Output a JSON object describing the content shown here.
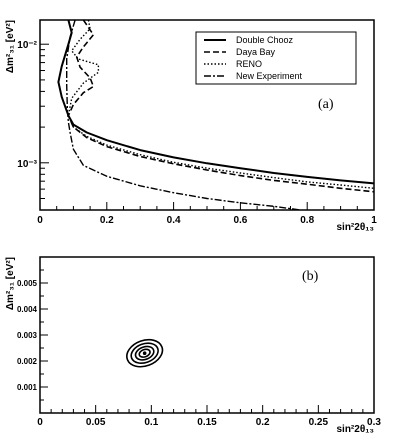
{
  "chart_data": [
    {
      "type": "line",
      "panel_label": "(a)",
      "xlabel": "sin²2θ₁₃",
      "ylabel": "Δm²₃₁ [eV²]",
      "xlim": [
        0,
        1
      ],
      "ylim": [
        0.0004,
        0.016
      ],
      "y_scale": "log",
      "x_ticks": [
        {
          "v": 0,
          "label": "0"
        },
        {
          "v": 0.2,
          "label": "0.2"
        },
        {
          "v": 0.4,
          "label": "0.4"
        },
        {
          "v": 0.6,
          "label": "0.6"
        },
        {
          "v": 0.8,
          "label": "0.8"
        },
        {
          "v": 1,
          "label": "1"
        }
      ],
      "y_ticks": [
        {
          "v": 0.001,
          "label": "10⁻³"
        },
        {
          "v": 0.01,
          "label": "10⁻²"
        }
      ],
      "legend_position": "top-right",
      "series": [
        {
          "name": "Double Chooz",
          "dash": "solid",
          "points": [
            [
              0.085,
              0.016
            ],
            [
              0.095,
              0.0125
            ],
            [
              0.085,
              0.01
            ],
            [
              0.065,
              0.0065
            ],
            [
              0.055,
              0.0048
            ],
            [
              0.065,
              0.0036
            ],
            [
              0.085,
              0.0025
            ],
            [
              0.1,
              0.0021
            ],
            [
              0.14,
              0.0018
            ],
            [
              0.2,
              0.00155
            ],
            [
              0.3,
              0.00128
            ],
            [
              0.4,
              0.00111
            ],
            [
              0.5,
              0.00099
            ],
            [
              0.6,
              0.0009
            ],
            [
              0.7,
              0.00082
            ],
            [
              0.8,
              0.00076
            ],
            [
              0.9,
              0.00071
            ],
            [
              1.0,
              0.00067
            ]
          ]
        },
        {
          "name": "Daya Bay",
          "dash": "dashed",
          "points": [
            [
              0.13,
              0.016
            ],
            [
              0.16,
              0.012
            ],
            [
              0.13,
              0.0095
            ],
            [
              0.11,
              0.0078
            ],
            [
              0.12,
              0.0064
            ],
            [
              0.15,
              0.0052
            ],
            [
              0.16,
              0.0044
            ],
            [
              0.13,
              0.0039
            ],
            [
              0.1,
              0.0031
            ],
            [
              0.085,
              0.0025
            ],
            [
              0.1,
              0.002
            ],
            [
              0.14,
              0.00163
            ],
            [
              0.2,
              0.00137
            ],
            [
              0.3,
              0.00113
            ],
            [
              0.4,
              0.00098
            ],
            [
              0.5,
              0.00087
            ],
            [
              0.6,
              0.00078
            ],
            [
              0.7,
              0.00071
            ],
            [
              0.8,
              0.00066
            ],
            [
              0.9,
              0.00061
            ],
            [
              1.0,
              0.00057
            ]
          ]
        },
        {
          "name": "RENO",
          "dash": "dotted",
          "points": [
            [
              0.145,
              0.016
            ],
            [
              0.15,
              0.0135
            ],
            [
              0.12,
              0.011
            ],
            [
              0.095,
              0.0088
            ],
            [
              0.115,
              0.0075
            ],
            [
              0.175,
              0.0067
            ],
            [
              0.175,
              0.0058
            ],
            [
              0.13,
              0.0047
            ],
            [
              0.095,
              0.0035
            ],
            [
              0.085,
              0.0025
            ],
            [
              0.1,
              0.002
            ],
            [
              0.14,
              0.00167
            ],
            [
              0.2,
              0.00141
            ],
            [
              0.3,
              0.00117
            ],
            [
              0.4,
              0.00101
            ],
            [
              0.5,
              0.0009
            ],
            [
              0.6,
              0.00082
            ],
            [
              0.7,
              0.00075
            ],
            [
              0.8,
              0.00069
            ],
            [
              0.9,
              0.00065
            ],
            [
              1.0,
              0.00061
            ]
          ]
        },
        {
          "name": "New Experiment",
          "dash": "dashdot",
          "points": [
            [
              0.105,
              0.016
            ],
            [
              0.09,
              0.0115
            ],
            [
              0.08,
              0.0075
            ],
            [
              0.08,
              0.0045
            ],
            [
              0.082,
              0.0028
            ],
            [
              0.085,
              0.0022
            ],
            [
              0.09,
              0.0018
            ],
            [
              0.1,
              0.0013
            ],
            [
              0.13,
              0.00095
            ],
            [
              0.2,
              0.00077
            ],
            [
              0.3,
              0.00064
            ],
            [
              0.4,
              0.00056
            ],
            [
              0.5,
              0.0005
            ],
            [
              0.6,
              0.00046
            ],
            [
              0.7,
              0.00043
            ],
            [
              0.78,
              0.0004
            ]
          ]
        }
      ]
    },
    {
      "type": "contour",
      "panel_label": "(b)",
      "xlabel": "sin²2θ₁₃",
      "ylabel": "Δm²₃₁ [eV²]",
      "xlim": [
        0,
        0.3
      ],
      "ylim": [
        0,
        0.006
      ],
      "x_ticks": [
        {
          "v": 0,
          "label": "0"
        },
        {
          "v": 0.05,
          "label": "0.05"
        },
        {
          "v": 0.1,
          "label": "0.1"
        },
        {
          "v": 0.15,
          "label": "0.15"
        },
        {
          "v": 0.2,
          "label": "0.2"
        },
        {
          "v": 0.25,
          "label": "0.25"
        },
        {
          "v": 0.3,
          "label": "0.3"
        }
      ],
      "y_ticks": [
        {
          "v": 0.001,
          "label": "0.001"
        },
        {
          "v": 0.002,
          "label": "0.002"
        },
        {
          "v": 0.003,
          "label": "0.003"
        },
        {
          "v": 0.004,
          "label": "0.004"
        },
        {
          "v": 0.005,
          "label": "0.005"
        }
      ],
      "best_fit": [
        0.094,
        0.0023
      ],
      "contours": [
        {
          "rx": 0.005,
          "ry": 0.00014,
          "angle": -20
        },
        {
          "rx": 0.0085,
          "ry": 0.00024,
          "angle": -20
        },
        {
          "rx": 0.0125,
          "ry": 0.00036,
          "angle": -20
        },
        {
          "rx": 0.0165,
          "ry": 0.00049,
          "angle": -20
        }
      ]
    }
  ]
}
